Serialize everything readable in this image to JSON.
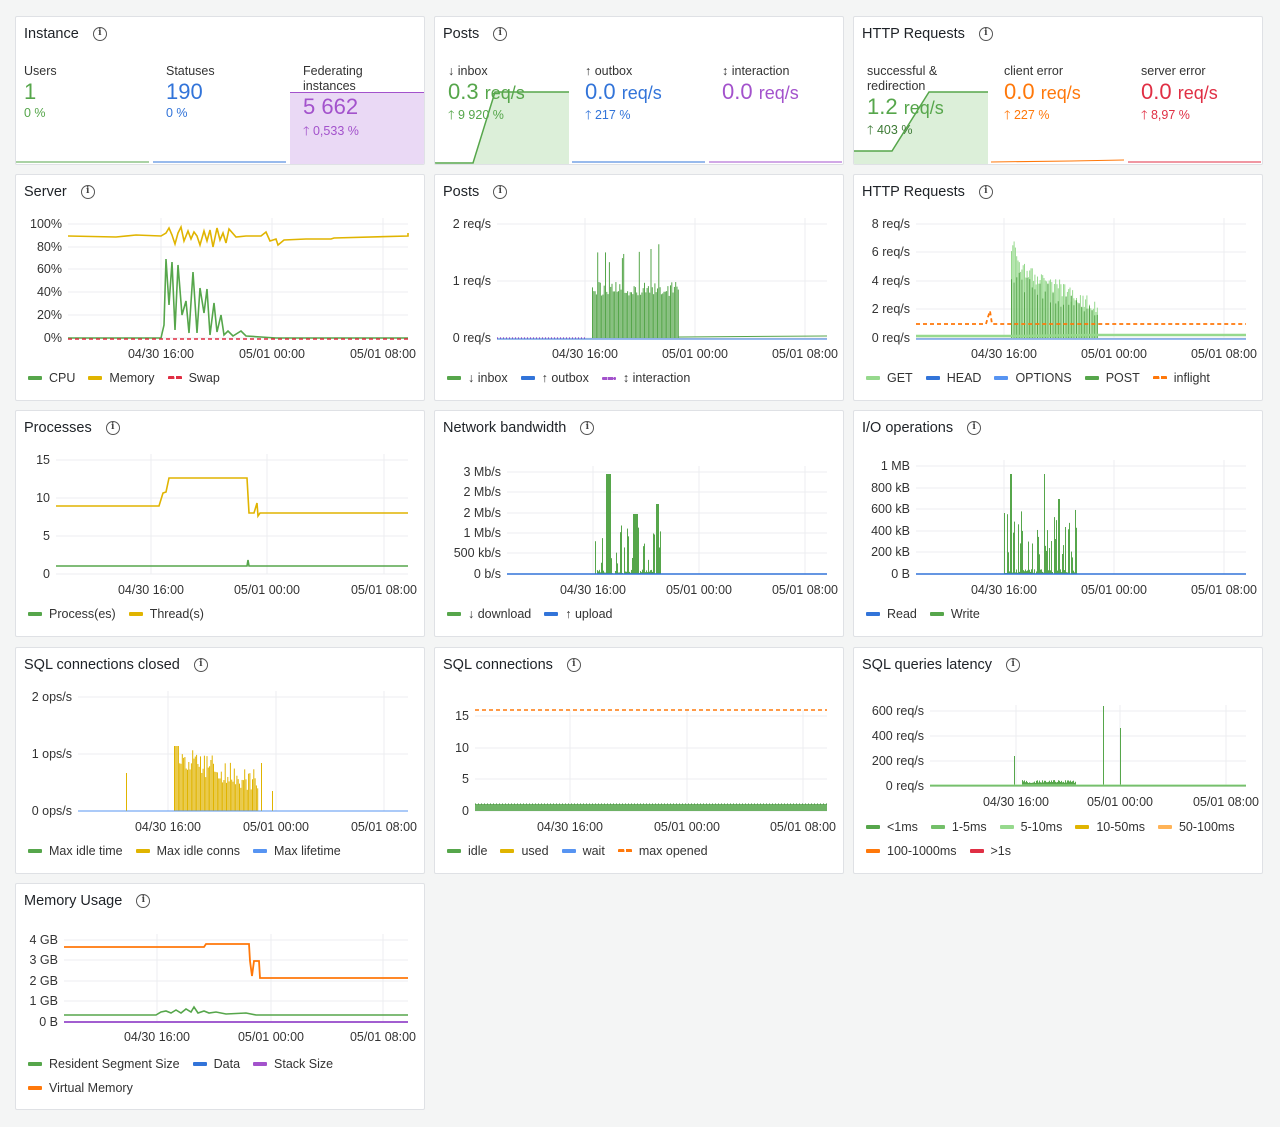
{
  "colors": {
    "green": "#56a64b",
    "blue": "#3274d9",
    "purple": "#a352cc",
    "yellow": "#e0b400",
    "red": "#e02f44",
    "orange": "#ff780a",
    "lightgreen": "#96d98d",
    "lightblue": "#5794f2",
    "lime": "#73bf69",
    "paleorange": "#ffb357"
  },
  "time_ticks": [
    "04/30 16:00",
    "05/01 00:00",
    "05/01 08:00"
  ],
  "instance": {
    "title": "Instance",
    "users": {
      "label": "Users",
      "value": "1",
      "change": "0 %"
    },
    "statuses": {
      "label": "Statuses",
      "value": "190",
      "change": "0 %"
    },
    "federating": {
      "label": "Federating instances",
      "value": "5 662",
      "change": "0,533 %"
    }
  },
  "posts_stat": {
    "title": "Posts",
    "inbox": {
      "label": "↓ inbox",
      "value": "0.3",
      "unit": "req/s",
      "change": "9 920 %"
    },
    "outbox": {
      "label": "↑ outbox",
      "value": "0.0",
      "unit": "req/s",
      "change": "217 %"
    },
    "interaction": {
      "label": "↕ interaction",
      "value": "0.0",
      "unit": "req/s"
    }
  },
  "http_stat": {
    "title": "HTTP Requests",
    "success": {
      "label": "successful & redirection",
      "value": "1.2",
      "unit": "req/s",
      "change": "403 %"
    },
    "client": {
      "label": "client error",
      "value": "0.0",
      "unit": "req/s",
      "change": "227 %"
    },
    "server": {
      "label": "server error",
      "value": "0.0",
      "unit": "req/s",
      "change": "8,97 %"
    }
  },
  "server": {
    "title": "Server",
    "yticks": [
      "100%",
      "80%",
      "60%",
      "40%",
      "20%",
      "0%"
    ],
    "legend": [
      {
        "label": "CPU",
        "color": "#56a64b"
      },
      {
        "label": "Memory",
        "color": "#e0b400"
      },
      {
        "label": "Swap",
        "color": "#e02f44",
        "dash": true
      }
    ]
  },
  "posts": {
    "title": "Posts",
    "yticks": [
      "2 req/s",
      "1 req/s",
      "0 req/s"
    ],
    "legend": [
      {
        "label": "↓ inbox",
        "color": "#56a64b"
      },
      {
        "label": "↑ outbox",
        "color": "#3274d9"
      },
      {
        "label": "↕ interaction",
        "color": "#a352cc",
        "dot": true
      }
    ]
  },
  "http": {
    "title": "HTTP Requests",
    "yticks": [
      "8 req/s",
      "6 req/s",
      "4 req/s",
      "2 req/s",
      "0 req/s"
    ],
    "legend": [
      {
        "label": "GET",
        "color": "#96d98d"
      },
      {
        "label": "HEAD",
        "color": "#3274d9"
      },
      {
        "label": "OPTIONS",
        "color": "#5794f2"
      },
      {
        "label": "POST",
        "color": "#56a64b"
      },
      {
        "label": "inflight",
        "color": "#ff780a",
        "dash": true
      }
    ]
  },
  "processes": {
    "title": "Processes",
    "yticks": [
      "15",
      "10",
      "5",
      "0"
    ],
    "legend": [
      {
        "label": "Process(es)",
        "color": "#56a64b"
      },
      {
        "label": "Thread(s)",
        "color": "#e0b400"
      }
    ]
  },
  "network": {
    "title": "Network bandwidth",
    "yticks": [
      "3 Mb/s",
      "2 Mb/s",
      "2 Mb/s",
      "1 Mb/s",
      "500 kb/s",
      "0 b/s"
    ],
    "legend": [
      {
        "label": "↓ download",
        "color": "#56a64b"
      },
      {
        "label": "↑ upload",
        "color": "#3274d9"
      }
    ]
  },
  "io": {
    "title": "I/O operations",
    "yticks": [
      "1 MB",
      "800 kB",
      "600 kB",
      "400 kB",
      "200 kB",
      "0 B"
    ],
    "legend": [
      {
        "label": "Read",
        "color": "#3274d9"
      },
      {
        "label": "Write",
        "color": "#56a64b"
      }
    ]
  },
  "sqlclosed": {
    "title": "SQL connections closed",
    "yticks": [
      "2 ops/s",
      "1 ops/s",
      "0 ops/s"
    ],
    "legend": [
      {
        "label": "Max idle time",
        "color": "#56a64b"
      },
      {
        "label": "Max idle conns",
        "color": "#e0b400"
      },
      {
        "label": "Max lifetime",
        "color": "#5794f2"
      }
    ]
  },
  "sqlconn": {
    "title": "SQL connections",
    "yticks": [
      "15",
      "10",
      "5",
      "0"
    ],
    "legend": [
      {
        "label": "idle",
        "color": "#56a64b"
      },
      {
        "label": "used",
        "color": "#e0b400"
      },
      {
        "label": "wait",
        "color": "#5794f2"
      },
      {
        "label": "max opened",
        "color": "#ff780a",
        "dash": true
      }
    ]
  },
  "sqllat": {
    "title": "SQL queries latency",
    "yticks": [
      "600 req/s",
      "400 req/s",
      "200 req/s",
      "0 req/s"
    ],
    "legend": [
      {
        "label": "<1ms",
        "color": "#56a64b"
      },
      {
        "label": "1-5ms",
        "color": "#73bf69"
      },
      {
        "label": "5-10ms",
        "color": "#96d98d"
      },
      {
        "label": "10-50ms",
        "color": "#e0b400"
      },
      {
        "label": "50-100ms",
        "color": "#ffb357"
      },
      {
        "label": "100-1000ms",
        "color": "#ff780a"
      },
      {
        "label": ">1s",
        "color": "#e02f44"
      }
    ]
  },
  "memory": {
    "title": "Memory Usage",
    "yticks": [
      "4 GB",
      "3 GB",
      "2 GB",
      "1 GB",
      "0 B"
    ],
    "legend": [
      {
        "label": "Resident Segment Size",
        "color": "#56a64b"
      },
      {
        "label": "Data",
        "color": "#3274d9"
      },
      {
        "label": "Stack Size",
        "color": "#a352cc"
      },
      {
        "label": "Virtual Memory",
        "color": "#ff780a"
      }
    ]
  }
}
